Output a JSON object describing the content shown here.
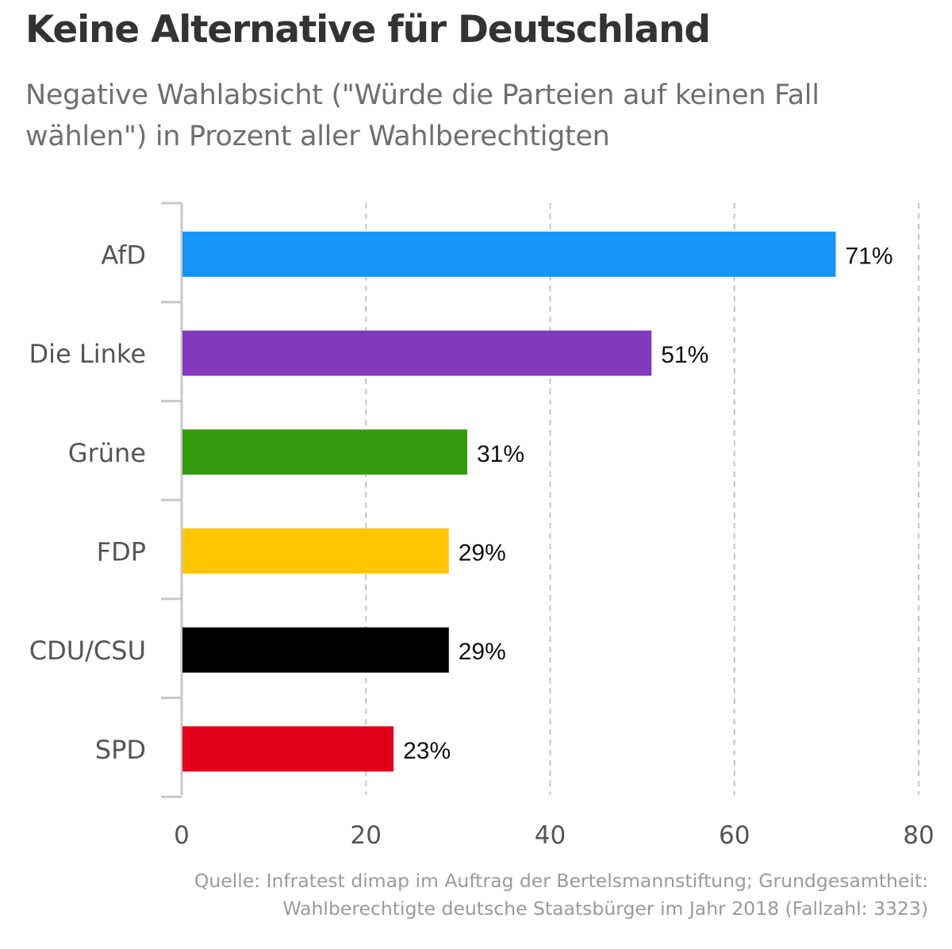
{
  "header": {
    "title": "Keine Alternative für Deutschland",
    "subtitle": "Negative Wahlabsicht (\"Würde die Parteien auf keinen Fall wählen\") in Prozent aller Wahlberechtigten"
  },
  "chart_data": {
    "type": "bar",
    "orientation": "horizontal",
    "categories": [
      "AfD",
      "Die Linke",
      "Grüne",
      "FDP",
      "CDU/CSU",
      "SPD"
    ],
    "values": [
      71,
      51,
      31,
      29,
      29,
      23
    ],
    "value_labels": [
      "71%",
      "51%",
      "31%",
      "29%",
      "29%",
      "23%"
    ],
    "colors": [
      "#1396f7",
      "#8239bd",
      "#349b0c",
      "#fec600",
      "#000000",
      "#e2001a"
    ],
    "xlim": [
      0,
      80
    ],
    "xticks": [
      0,
      20,
      40,
      60,
      80
    ],
    "grid": "vertical-dashed"
  },
  "source": {
    "line1": "Quelle: Infratest dimap im Auftrag der Bertelsmannstiftung; Grundgesamtheit:",
    "line2": "Wahlberechtigte deutsche Staatsbürger im Jahr 2018 (Fallzahl: 3323)"
  }
}
